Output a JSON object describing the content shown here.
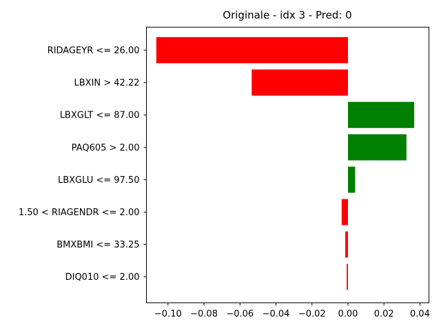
{
  "chart_data": {
    "type": "bar",
    "orientation": "horizontal",
    "title": "Originale - idx 3 - Pred: 0",
    "xlabel": "",
    "ylabel": "",
    "xlim": [
      -0.112,
      0.045
    ],
    "xticks": [
      -0.1,
      -0.08,
      -0.06,
      -0.04,
      -0.02,
      0.0,
      0.02,
      0.04
    ],
    "xtick_labels": [
      "−0.10",
      "−0.08",
      "−0.06",
      "−0.04",
      "−0.02",
      "0.00",
      "0.02",
      "0.04"
    ],
    "categories": [
      "RIDAGEYR <= 26.00",
      "LBXIN > 42.22",
      "LBXGLT <= 87.00",
      "PAQ605 > 2.00",
      "LBXGLU <= 97.50",
      "1.50 < RIAGENDR <= 2.00",
      "BMXBMI <= 33.25",
      "DIQ010 <= 2.00"
    ],
    "values": [
      -0.1065,
      -0.0535,
      0.0368,
      0.0325,
      0.004,
      -0.0035,
      -0.0015,
      -0.0007
    ],
    "positive_color": "#008000",
    "negative_color": "#ff0000",
    "grid": false,
    "legend": "none"
  }
}
